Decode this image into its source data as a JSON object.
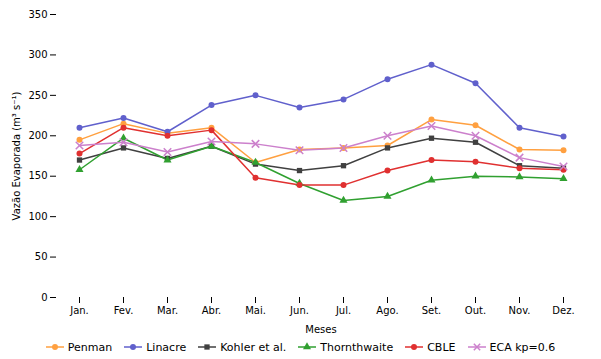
{
  "chart_data": {
    "type": "line",
    "categories": [
      "Jan.",
      "Fev.",
      "Mar.",
      "Abr.",
      "Mai.",
      "Jun.",
      "Jul.",
      "Ago.",
      "Set.",
      "Out.",
      "Nov.",
      "Dez."
    ],
    "series": [
      {
        "name": "Penman",
        "color": "#FFA040",
        "marker": "circle",
        "values": [
          195,
          215,
          203,
          210,
          167,
          183,
          185,
          188,
          220,
          213,
          183,
          182
        ]
      },
      {
        "name": "Linacre",
        "color": "#6060CC",
        "marker": "circle",
        "values": [
          210,
          222,
          205,
          238,
          250,
          235,
          245,
          270,
          288,
          265,
          210,
          199
        ]
      },
      {
        "name": "Kohler et al.",
        "color": "#404040",
        "marker": "square",
        "values": [
          170,
          185,
          172,
          187,
          165,
          157,
          163,
          185,
          197,
          192,
          163,
          160
        ]
      },
      {
        "name": "Thornthwaite",
        "color": "#30A030",
        "marker": "triangle",
        "values": [
          158,
          197,
          170,
          187,
          167,
          141,
          120,
          125,
          145,
          150,
          149,
          147
        ]
      },
      {
        "name": "CBLE",
        "color": "#E03030",
        "marker": "circle",
        "values": [
          178,
          210,
          200,
          207,
          148,
          139,
          139,
          157,
          170,
          168,
          160,
          158
        ]
      },
      {
        "name": "ECA kp=0.6",
        "color": "#CC80CC",
        "marker": "x",
        "values": [
          188,
          192,
          180,
          193,
          190,
          182,
          185,
          200,
          212,
          200,
          173,
          162
        ]
      }
    ],
    "xlabel": "Meses",
    "ylabel": "Vazão Evaporada (m³ s⁻¹)",
    "ylim": [
      0,
      350
    ],
    "yticks": [
      0,
      50,
      100,
      150,
      200,
      250,
      300,
      350
    ],
    "grid": false,
    "legend": "bottom"
  }
}
